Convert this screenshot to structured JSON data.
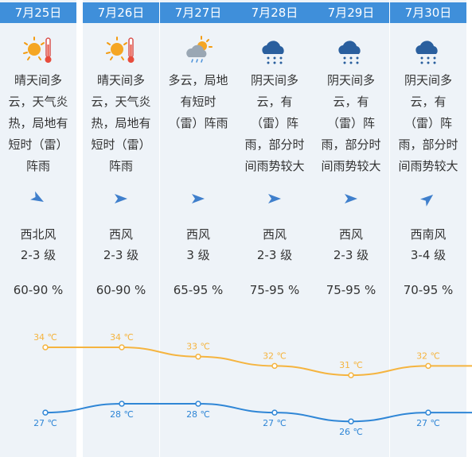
{
  "colors": {
    "header_bg": "#3f8fda",
    "column_bg": "#eef3f8",
    "high_line": "#f5b43f",
    "low_line": "#2f86d6",
    "arrow": "#3f7fcc"
  },
  "days": [
    {
      "date": "7月25日",
      "icon": "sun-thermometer-icon",
      "desc": [
        "晴天间多",
        "云，天气炎",
        "热，局地有",
        "短时（雷）",
        "阵雨"
      ],
      "wind_arrow": "arrow-southeast-icon",
      "wind_dir": "西北风",
      "wind_level": "2-3 级",
      "humidity": "60-90 %",
      "high": "34 ℃",
      "low": "27 ℃"
    },
    {
      "date": "7月26日",
      "icon": "sun-thermometer-icon",
      "desc": [
        "晴天间多",
        "云，天气炎",
        "热，局地有",
        "短时（雷）",
        "阵雨"
      ],
      "wind_arrow": "arrow-east-icon",
      "wind_dir": "西风",
      "wind_level": "2-3 级",
      "humidity": "60-90 %",
      "high": "34 ℃",
      "low": "28 ℃"
    },
    {
      "date": "7月27日",
      "icon": "partly-cloudy-rain-icon",
      "desc": [
        "多云，局地",
        "有短时",
        "（雷）阵雨"
      ],
      "wind_arrow": "arrow-east-icon",
      "wind_dir": "西风",
      "wind_level": "3 级",
      "humidity": "65-95 %",
      "high": "33 ℃",
      "low": "28 ℃"
    },
    {
      "date": "7月28日",
      "icon": "rain-cloud-icon",
      "desc": [
        "阴天间多",
        "云，有",
        "（雷）阵",
        "雨，部分时",
        "间雨势较大"
      ],
      "wind_arrow": "arrow-east-icon",
      "wind_dir": "西风",
      "wind_level": "2-3 级",
      "humidity": "75-95 %",
      "high": "32 ℃",
      "low": "27 ℃"
    },
    {
      "date": "7月29日",
      "icon": "rain-cloud-icon",
      "desc": [
        "阴天间多",
        "云，有",
        "（雷）阵",
        "雨，部分时",
        "间雨势较大"
      ],
      "wind_arrow": "arrow-east-icon",
      "wind_dir": "西风",
      "wind_level": "2-3 级",
      "humidity": "75-95 %",
      "high": "31 ℃",
      "low": "26 ℃"
    },
    {
      "date": "7月30日",
      "icon": "rain-cloud-icon",
      "desc": [
        "阴天间多",
        "云，有",
        "（雷）阵",
        "雨，部分时",
        "间雨势较大"
      ],
      "wind_arrow": "arrow-northeast-icon",
      "wind_dir": "西南风",
      "wind_level": "3-4 级",
      "humidity": "70-95 %",
      "high": "32 ℃",
      "low": "27 ℃"
    }
  ]
}
